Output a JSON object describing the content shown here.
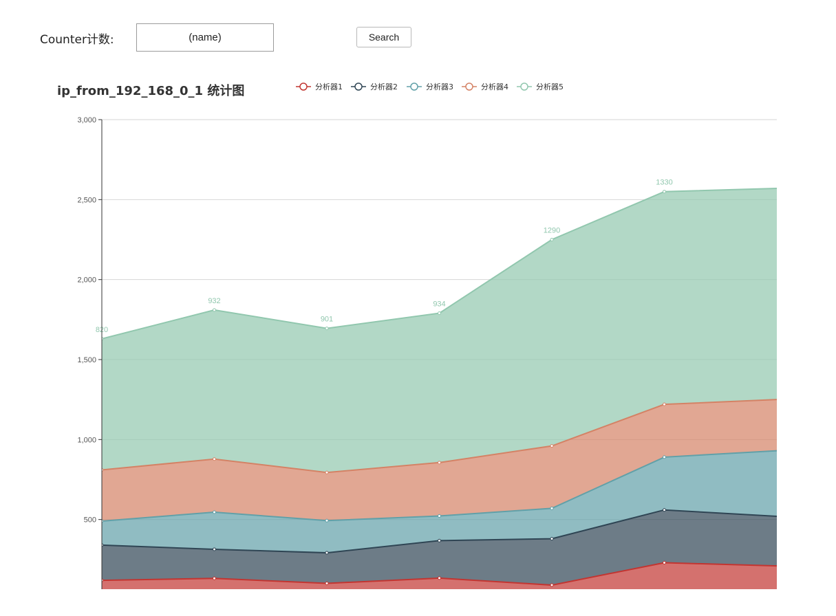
{
  "form": {
    "counter_label": "Counter计数:",
    "name_value": "(name)",
    "search_label": "Search"
  },
  "chart_data": {
    "type": "area",
    "stacked": true,
    "title": "ip_from_192_168_0_1 统计图",
    "xlabel": "",
    "ylabel": "",
    "ylim": [
      0,
      3000
    ],
    "yticks": [
      500,
      1000,
      1500,
      2000,
      2500,
      3000
    ],
    "ytick_labels": [
      "500",
      "1,000",
      "1,500",
      "2,000",
      "2,500",
      "3,000"
    ],
    "grid": true,
    "legend_position": "top",
    "categories": [
      "",
      "",
      "",
      "",
      "",
      "",
      ""
    ],
    "series": [
      {
        "name": "分析器1",
        "color": "#c23531",
        "values": [
          120,
          132,
          101,
          134,
          90,
          230,
          210
        ],
        "labels": [
          "",
          "",
          "",
          "",
          "",
          "",
          ""
        ]
      },
      {
        "name": "分析器2",
        "color": "#2f4554",
        "values": [
          220,
          182,
          191,
          234,
          290,
          330,
          310
        ],
        "labels": [
          "",
          "",
          "",
          "",
          "",
          "",
          ""
        ]
      },
      {
        "name": "分析器3",
        "color": "#61a0a8",
        "values": [
          150,
          232,
          201,
          154,
          190,
          330,
          410
        ],
        "labels": [
          "",
          "",
          "",
          "",
          "",
          "",
          ""
        ]
      },
      {
        "name": "分析器4",
        "color": "#d48265",
        "values": [
          320,
          332,
          301,
          334,
          390,
          330,
          320
        ],
        "labels": [
          "",
          "",
          "",
          "",
          "",
          "",
          ""
        ]
      },
      {
        "name": "分析器5",
        "color": "#91c7ae",
        "values": [
          820,
          932,
          901,
          934,
          1290,
          1330,
          1320
        ],
        "labels": [
          "820",
          "932",
          "901",
          "934",
          "1290",
          "1330",
          ""
        ]
      }
    ]
  }
}
